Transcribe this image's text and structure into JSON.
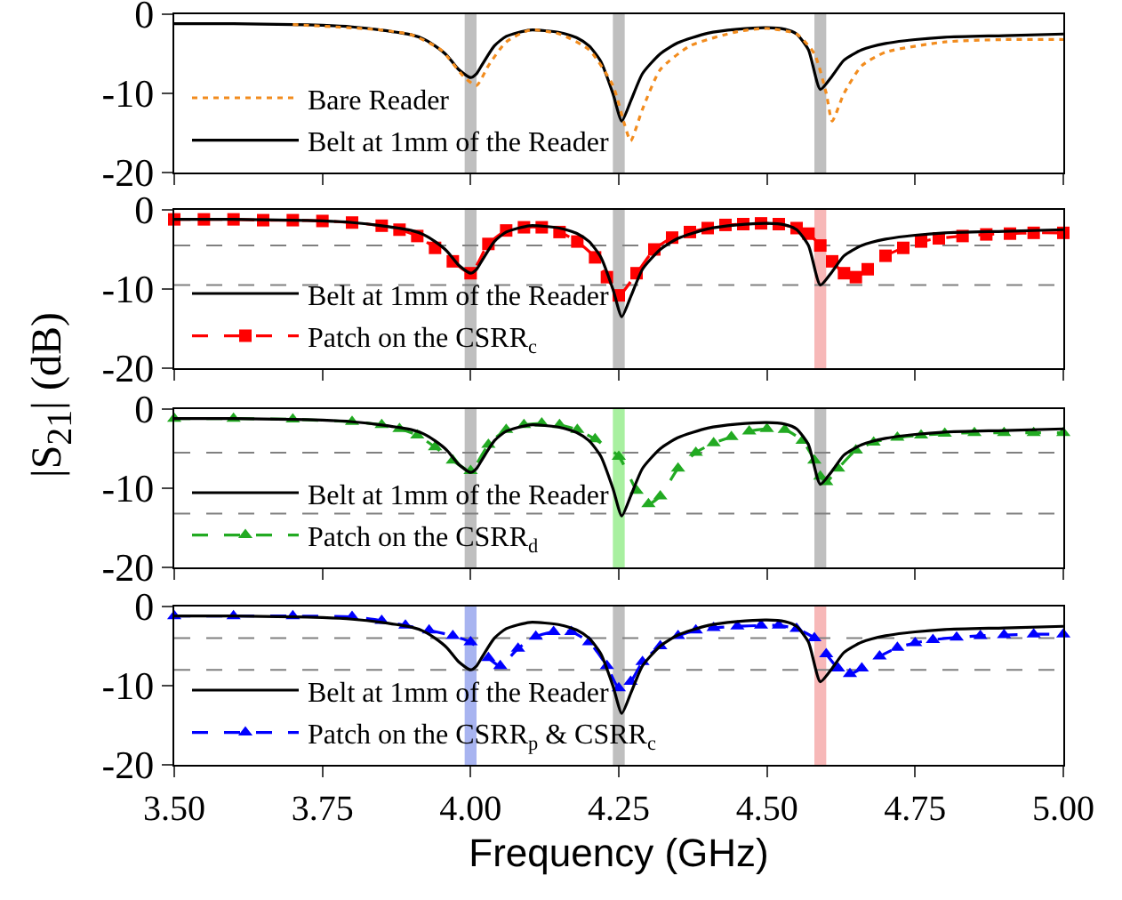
{
  "chart_data": [
    {
      "type": "line",
      "ylabel": "|S$_{21}$| (dB)",
      "xlim": [
        3.5,
        5.0
      ],
      "ylim": [
        -20,
        0
      ],
      "xticks": [
        {
          "value": 3.5,
          "label": null
        },
        {
          "value": 3.75,
          "label": null
        },
        {
          "value": 4.0,
          "label": null
        },
        {
          "value": 4.25,
          "label": null
        },
        {
          "value": 4.5,
          "label": null
        },
        {
          "value": 4.75,
          "label": null
        },
        {
          "value": 5.0,
          "label": null
        }
      ],
      "yticks": [
        -20,
        -10,
        0
      ],
      "tick_labels": "y",
      "legend": "bottom left",
      "bands": [
        {
          "axis": "x",
          "from": 3.99,
          "to": 4.01,
          "color": "#bfbfbf"
        },
        {
          "axis": "x",
          "from": 4.24,
          "to": 4.26,
          "color": "#bfbfbf"
        },
        {
          "axis": "x",
          "from": 4.58,
          "to": 4.6,
          "color": "#bfbfbf"
        }
      ],
      "series": [
        {
          "name": "Bare Reader",
          "color": "#f28c1e",
          "line_style": "dotted",
          "marker": "none",
          "x": [
            3.7,
            3.85,
            3.9,
            3.95,
            3.99,
            4.01,
            4.03,
            4.06,
            4.1,
            4.15,
            4.2,
            4.24,
            4.26,
            4.27,
            4.29,
            4.32,
            4.37,
            4.45,
            4.5,
            4.55,
            4.58,
            4.6,
            4.61,
            4.63,
            4.66,
            4.7,
            4.8,
            4.9,
            5.0
          ],
          "values": [
            -1.3,
            -2.0,
            -2.6,
            -4.5,
            -8.0,
            -9.0,
            -6.5,
            -3.5,
            -2.0,
            -2.5,
            -4.5,
            -9.0,
            -14.0,
            -16.0,
            -12.0,
            -7.0,
            -4.0,
            -2.2,
            -1.8,
            -2.5,
            -5.0,
            -10.0,
            -13.5,
            -10.0,
            -6.5,
            -4.8,
            -3.5,
            -3.2,
            -3.2
          ]
        },
        {
          "name": "Belt at 1mm of the Reader",
          "color": "#000000",
          "line_style": "solid",
          "marker": "none",
          "x": [
            3.5,
            3.6,
            3.7,
            3.75,
            3.8,
            3.85,
            3.9,
            3.92,
            3.94,
            3.96,
            3.98,
            4.0,
            4.01,
            4.02,
            4.04,
            4.06,
            4.1,
            4.15,
            4.18,
            4.2,
            4.22,
            4.24,
            4.255,
            4.27,
            4.29,
            4.32,
            4.35,
            4.4,
            4.45,
            4.5,
            4.53,
            4.55,
            4.57,
            4.59,
            4.61,
            4.63,
            4.66,
            4.7,
            4.75,
            4.8,
            4.9,
            5.0
          ],
          "values": [
            -1.2,
            -1.2,
            -1.3,
            -1.4,
            -1.6,
            -2.0,
            -2.6,
            -3.1,
            -4.0,
            -5.2,
            -7.0,
            -8.0,
            -7.5,
            -6.3,
            -4.0,
            -2.8,
            -2.0,
            -2.3,
            -3.0,
            -4.0,
            -6.0,
            -10.0,
            -13.5,
            -11.0,
            -7.5,
            -5.0,
            -3.6,
            -2.4,
            -1.9,
            -1.7,
            -1.9,
            -2.5,
            -4.5,
            -9.5,
            -7.8,
            -5.8,
            -4.5,
            -3.7,
            -3.2,
            -2.9,
            -2.7,
            -2.5
          ]
        }
      ]
    },
    {
      "type": "line",
      "xlim": [
        3.5,
        5.0
      ],
      "ylim": [
        -20,
        0
      ],
      "xticks": [
        {
          "value": 3.5,
          "label": null
        },
        {
          "value": 3.75,
          "label": null
        },
        {
          "value": 4.0,
          "label": null
        },
        {
          "value": 4.25,
          "label": null
        },
        {
          "value": 4.5,
          "label": null
        },
        {
          "value": 4.75,
          "label": null
        },
        {
          "value": 5.0,
          "label": null
        }
      ],
      "yticks": [
        -20,
        -10,
        0
      ],
      "tick_labels": "y",
      "legend": "bottom left",
      "bands": [
        {
          "axis": "x",
          "from": 3.99,
          "to": 4.01,
          "color": "#bfbfbf"
        },
        {
          "axis": "x",
          "from": 4.24,
          "to": 4.26,
          "color": "#bfbfbf"
        },
        {
          "axis": "x",
          "from": 4.58,
          "to": 4.6,
          "color": "#f7b8b8"
        }
      ],
      "ref_lines": [
        {
          "axis": "y",
          "value": -4.5,
          "color": "#808080",
          "line_style": "dashed"
        },
        {
          "axis": "y",
          "value": -9.5,
          "color": "#808080",
          "line_style": "dashed"
        }
      ],
      "series": [
        {
          "name": "Belt at 1mm of the Reader",
          "color": "#000000",
          "line_style": "solid",
          "marker": "none",
          "x": [
            3.5,
            3.6,
            3.7,
            3.75,
            3.8,
            3.85,
            3.9,
            3.92,
            3.94,
            3.96,
            3.98,
            4.0,
            4.01,
            4.02,
            4.04,
            4.06,
            4.1,
            4.15,
            4.18,
            4.2,
            4.22,
            4.24,
            4.255,
            4.27,
            4.29,
            4.32,
            4.35,
            4.4,
            4.45,
            4.5,
            4.53,
            4.55,
            4.57,
            4.59,
            4.61,
            4.63,
            4.66,
            4.7,
            4.75,
            4.8,
            4.9,
            5.0
          ],
          "values": [
            -1.2,
            -1.2,
            -1.3,
            -1.4,
            -1.6,
            -2.0,
            -2.6,
            -3.1,
            -4.0,
            -5.2,
            -7.0,
            -8.0,
            -7.5,
            -6.3,
            -4.0,
            -2.8,
            -2.0,
            -2.3,
            -3.0,
            -4.0,
            -6.0,
            -10.0,
            -13.5,
            -11.0,
            -7.5,
            -5.0,
            -3.6,
            -2.4,
            -1.9,
            -1.7,
            -1.9,
            -2.5,
            -4.5,
            -9.5,
            -7.8,
            -5.8,
            -4.5,
            -3.7,
            -3.2,
            -2.9,
            -2.7,
            -2.5
          ]
        },
        {
          "name": "Patch on the CSRR$_{c}$",
          "color": "#ff0000",
          "line_style": "dashed",
          "marker": "square",
          "x": [
            3.5,
            3.55,
            3.6,
            3.65,
            3.7,
            3.75,
            3.8,
            3.85,
            3.88,
            3.91,
            3.94,
            3.97,
            4.0,
            4.03,
            4.06,
            4.09,
            4.12,
            4.15,
            4.18,
            4.21,
            4.23,
            4.25,
            4.28,
            4.31,
            4.34,
            4.37,
            4.4,
            4.43,
            4.46,
            4.49,
            4.52,
            4.55,
            4.57,
            4.59,
            4.61,
            4.63,
            4.65,
            4.67,
            4.7,
            4.73,
            4.76,
            4.79,
            4.83,
            4.87,
            4.91,
            4.95,
            5.0
          ],
          "values": [
            -1.2,
            -1.2,
            -1.2,
            -1.3,
            -1.3,
            -1.4,
            -1.6,
            -2.0,
            -2.5,
            -3.3,
            -4.8,
            -6.5,
            -8.0,
            -4.3,
            -2.6,
            -2.2,
            -2.2,
            -2.8,
            -4.0,
            -6.0,
            -8.5,
            -10.8,
            -8.0,
            -5.0,
            -3.5,
            -2.8,
            -2.3,
            -1.9,
            -1.8,
            -1.7,
            -1.8,
            -2.3,
            -3.0,
            -4.5,
            -6.5,
            -8.0,
            -8.5,
            -7.5,
            -5.8,
            -4.8,
            -4.0,
            -3.6,
            -3.3,
            -3.1,
            -3.0,
            -2.9,
            -2.9
          ]
        }
      ]
    },
    {
      "type": "line",
      "xlim": [
        3.5,
        5.0
      ],
      "ylim": [
        -20,
        0
      ],
      "xticks": [
        {
          "value": 3.5,
          "label": null
        },
        {
          "value": 3.75,
          "label": null
        },
        {
          "value": 4.0,
          "label": null
        },
        {
          "value": 4.25,
          "label": null
        },
        {
          "value": 4.5,
          "label": null
        },
        {
          "value": 4.75,
          "label": null
        },
        {
          "value": 5.0,
          "label": null
        }
      ],
      "yticks": [
        -20,
        -10,
        0
      ],
      "tick_labels": "y",
      "legend": "bottom left",
      "bands": [
        {
          "axis": "x",
          "from": 3.99,
          "to": 4.01,
          "color": "#bfbfbf"
        },
        {
          "axis": "x",
          "from": 4.24,
          "to": 4.26,
          "color": "#a8f0a0"
        },
        {
          "axis": "x",
          "from": 4.58,
          "to": 4.6,
          "color": "#bfbfbf"
        }
      ],
      "ref_lines": [
        {
          "axis": "y",
          "value": -5.5,
          "color": "#808080",
          "line_style": "dashed"
        },
        {
          "axis": "y",
          "value": -13.2,
          "color": "#808080",
          "line_style": "dashed"
        }
      ],
      "series": [
        {
          "name": "Belt at 1mm of the Reader",
          "color": "#000000",
          "line_style": "solid",
          "marker": "none",
          "x": [
            3.5,
            3.6,
            3.7,
            3.75,
            3.8,
            3.85,
            3.9,
            3.92,
            3.94,
            3.96,
            3.98,
            4.0,
            4.01,
            4.02,
            4.04,
            4.06,
            4.1,
            4.15,
            4.18,
            4.2,
            4.22,
            4.24,
            4.255,
            4.27,
            4.29,
            4.32,
            4.35,
            4.4,
            4.45,
            4.5,
            4.53,
            4.55,
            4.57,
            4.59,
            4.61,
            4.63,
            4.66,
            4.7,
            4.75,
            4.8,
            4.9,
            5.0
          ],
          "values": [
            -1.2,
            -1.2,
            -1.3,
            -1.4,
            -1.6,
            -2.0,
            -2.6,
            -3.1,
            -4.0,
            -5.2,
            -7.0,
            -8.0,
            -7.5,
            -6.3,
            -4.0,
            -2.8,
            -2.0,
            -2.3,
            -3.0,
            -4.0,
            -6.0,
            -10.0,
            -13.5,
            -11.0,
            -7.5,
            -5.0,
            -3.6,
            -2.4,
            -1.9,
            -1.7,
            -1.9,
            -2.5,
            -4.5,
            -9.5,
            -7.8,
            -5.8,
            -4.5,
            -3.7,
            -3.2,
            -2.9,
            -2.7,
            -2.5
          ]
        },
        {
          "name": "Patch on the CSRR$_{d}$",
          "color": "#22aa22",
          "line_style": "dashed",
          "marker": "triangle",
          "x": [
            3.5,
            3.6,
            3.7,
            3.8,
            3.85,
            3.88,
            3.91,
            3.94,
            3.97,
            4.0,
            4.03,
            4.06,
            4.09,
            4.12,
            4.15,
            4.18,
            4.21,
            4.25,
            4.28,
            4.3,
            4.32,
            4.35,
            4.38,
            4.41,
            4.44,
            4.47,
            4.5,
            4.53,
            4.56,
            4.58,
            4.59,
            4.6,
            4.62,
            4.65,
            4.68,
            4.72,
            4.76,
            4.8,
            4.85,
            4.9,
            4.95,
            5.0
          ],
          "values": [
            -1.2,
            -1.2,
            -1.3,
            -1.6,
            -2.0,
            -2.5,
            -3.3,
            -4.8,
            -6.5,
            -7.8,
            -4.5,
            -2.6,
            -2.0,
            -1.8,
            -2.0,
            -2.6,
            -3.8,
            -6.0,
            -10.3,
            -12.0,
            -11.0,
            -7.5,
            -5.5,
            -4.3,
            -3.5,
            -2.8,
            -2.5,
            -2.6,
            -4.0,
            -6.5,
            -8.5,
            -9.2,
            -7.5,
            -5.2,
            -4.2,
            -3.6,
            -3.3,
            -3.1,
            -3.0,
            -3.0,
            -3.0,
            -3.0
          ]
        }
      ]
    },
    {
      "type": "line",
      "xlabel": "Frequency (GHz)",
      "xlim": [
        3.5,
        5.0
      ],
      "ylim": [
        -20,
        0
      ],
      "xticks": [
        {
          "value": 3.5,
          "label": "3.50"
        },
        {
          "value": 3.75,
          "label": "3.75"
        },
        {
          "value": 4.0,
          "label": "4.00"
        },
        {
          "value": 4.25,
          "label": "4.25"
        },
        {
          "value": 4.5,
          "label": "4.50"
        },
        {
          "value": 4.75,
          "label": "4.75"
        },
        {
          "value": 5.0,
          "label": "5.00"
        }
      ],
      "yticks": [
        -20,
        -10,
        0
      ],
      "legend": "bottom left",
      "bands": [
        {
          "axis": "x",
          "from": 3.99,
          "to": 4.01,
          "color": "#a8b4f0"
        },
        {
          "axis": "x",
          "from": 4.24,
          "to": 4.26,
          "color": "#bfbfbf"
        },
        {
          "axis": "x",
          "from": 4.58,
          "to": 4.6,
          "color": "#f7b8b8"
        }
      ],
      "ref_lines": [
        {
          "axis": "y",
          "value": -4.0,
          "color": "#808080",
          "line_style": "dashed"
        },
        {
          "axis": "y",
          "value": -8.0,
          "color": "#808080",
          "line_style": "dashed"
        }
      ],
      "series": [
        {
          "name": "Belt at 1mm of the Reader",
          "color": "#000000",
          "line_style": "solid",
          "marker": "none",
          "x": [
            3.5,
            3.6,
            3.7,
            3.75,
            3.8,
            3.85,
            3.9,
            3.92,
            3.94,
            3.96,
            3.98,
            4.0,
            4.01,
            4.02,
            4.04,
            4.06,
            4.1,
            4.15,
            4.18,
            4.2,
            4.22,
            4.24,
            4.255,
            4.27,
            4.29,
            4.32,
            4.35,
            4.4,
            4.45,
            4.5,
            4.53,
            4.55,
            4.57,
            4.59,
            4.61,
            4.63,
            4.66,
            4.7,
            4.75,
            4.8,
            4.9,
            5.0
          ],
          "values": [
            -1.2,
            -1.2,
            -1.3,
            -1.4,
            -1.6,
            -2.0,
            -2.6,
            -3.1,
            -4.0,
            -5.2,
            -7.0,
            -8.0,
            -7.5,
            -6.3,
            -4.0,
            -2.8,
            -2.0,
            -2.3,
            -3.0,
            -4.0,
            -6.0,
            -10.0,
            -13.5,
            -11.0,
            -7.5,
            -5.0,
            -3.6,
            -2.4,
            -1.9,
            -1.7,
            -1.9,
            -2.5,
            -4.5,
            -9.5,
            -7.8,
            -5.8,
            -4.5,
            -3.7,
            -3.2,
            -2.9,
            -2.7,
            -2.5
          ]
        },
        {
          "name": "Patch on the CSRR$_{p}$ & CSRR$_{c}$",
          "color": "#0000ff",
          "line_style": "dashed",
          "marker": "triangle",
          "x": [
            3.5,
            3.6,
            3.7,
            3.8,
            3.85,
            3.89,
            3.93,
            3.97,
            4.0,
            4.03,
            4.05,
            4.08,
            4.11,
            4.14,
            4.17,
            4.2,
            4.23,
            4.25,
            4.27,
            4.29,
            4.32,
            4.35,
            4.38,
            4.41,
            4.45,
            4.49,
            4.52,
            4.55,
            4.58,
            4.6,
            4.62,
            4.64,
            4.66,
            4.69,
            4.72,
            4.75,
            4.78,
            4.82,
            4.86,
            4.9,
            4.95,
            5.0
          ],
          "values": [
            -1.2,
            -1.2,
            -1.2,
            -1.3,
            -1.8,
            -2.4,
            -3.0,
            -3.7,
            -4.5,
            -6.5,
            -7.5,
            -5.3,
            -3.8,
            -3.2,
            -3.2,
            -4.5,
            -7.5,
            -10.3,
            -9.5,
            -7.0,
            -5.0,
            -3.7,
            -3.0,
            -2.7,
            -2.5,
            -2.4,
            -2.4,
            -2.8,
            -4.0,
            -6.0,
            -7.8,
            -8.5,
            -7.8,
            -6.3,
            -5.2,
            -4.6,
            -4.2,
            -3.9,
            -3.7,
            -3.6,
            -3.5,
            -3.5
          ]
        }
      ]
    }
  ]
}
